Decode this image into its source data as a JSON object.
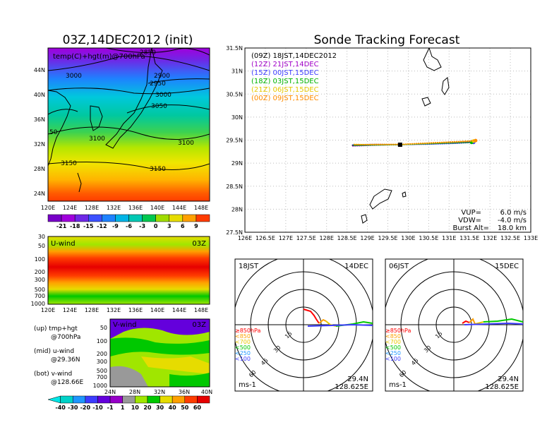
{
  "left_title": "03Z,14DEC2012 (init)",
  "right_title": "Sonde Tracking Forecast",
  "map": {
    "label": "temp(C)+hgt(m)@700hPa",
    "contours": [
      "2850",
      "2900",
      "2950",
      "3000",
      "3000",
      "3050",
      "3100",
      "3100",
      "3150",
      "3150",
      "50"
    ],
    "lat_ticks": [
      "44N",
      "40N",
      "36N",
      "32N",
      "28N",
      "24N"
    ],
    "lon_ticks": [
      "120E",
      "124E",
      "128E",
      "132E",
      "136E",
      "140E",
      "144E",
      "148E"
    ]
  },
  "temp_colorbar": [
    "-21",
    "-18",
    "-15",
    "-12",
    "-9",
    "-6",
    "-3",
    "0",
    "3",
    "6",
    "9"
  ],
  "uwind": {
    "label": "U-wind",
    "time": "03Z",
    "levels": [
      "30",
      "50",
      "100",
      "200",
      "300",
      "500",
      "700",
      "1000"
    ],
    "lon_ticks": [
      "120E",
      "124E",
      "128E",
      "132E",
      "136E",
      "140E",
      "144E",
      "148E"
    ]
  },
  "vwind": {
    "label": "V-wind",
    "time": "03Z",
    "levels": [
      "50",
      "100",
      "200",
      "300",
      "500",
      "700",
      "1000"
    ],
    "lat_ticks": [
      "24N",
      "28N",
      "32N",
      "36N",
      "40N"
    ]
  },
  "wind_colorbar": [
    "-40",
    "-30",
    "-20",
    "-10",
    "-1",
    "1",
    "10",
    "20",
    "30",
    "40",
    "50",
    "60"
  ],
  "notes": [
    {
      "a": "(up) tmp+hgt",
      "b": "@700hPa"
    },
    {
      "a": "(mid) u-wind",
      "b": "@29.36N"
    },
    {
      "a": "(bot) v-wind",
      "b": "@128.66E"
    }
  ],
  "track": {
    "legend": [
      {
        "label": "(09Z)  18JST,14DEC2012",
        "color": "#000000"
      },
      {
        "label": "(12Z)  21JST,14DEC",
        "color": "#a000c8"
      },
      {
        "label": "(15Z)  00JST,15DEC",
        "color": "#3c3cff"
      },
      {
        "label": "(18Z)  03JST,15DEC",
        "color": "#00b400"
      },
      {
        "label": "(21Z)  06JST,15DEC",
        "color": "#e6c800"
      },
      {
        "label": "(00Z)  09JST,15DEC",
        "color": "#ff8c00"
      }
    ],
    "lat_ticks": [
      "31.5N",
      "31N",
      "30.5N",
      "30N",
      "29.5N",
      "29N",
      "28.5N",
      "28N",
      "27.5N"
    ],
    "lon_ticks": [
      "126E",
      "126.5E",
      "127E",
      "127.5E",
      "128E",
      "128.5E",
      "129E",
      "129.5E",
      "130E",
      "130.5E",
      "131E",
      "131.5E",
      "132E",
      "132.5E",
      "133E"
    ],
    "params": [
      {
        "k": "VUP=",
        "v": "6.0  m/s"
      },
      {
        "k": "VDW=",
        "v": "-4.0  m/s"
      },
      {
        "k": "Burst Alt=",
        "v": "18.0  km"
      }
    ]
  },
  "chart_data": {
    "type": "line",
    "title": "Sonde Tracking Forecast",
    "xlabel": "",
    "ylabel": "",
    "xlim": [
      126,
      133
    ],
    "ylim": [
      27.5,
      31.5
    ],
    "launch": {
      "lon": 129.8,
      "lat": 29.4
    },
    "series": [
      {
        "name": "(09Z) 18JST,14DEC2012",
        "color": "#000000",
        "x": [
          128.62,
          129.2,
          129.8,
          130.5,
          131.2,
          131.55
        ],
        "y": [
          29.39,
          29.4,
          29.4,
          29.42,
          29.44,
          29.46
        ]
      },
      {
        "name": "(12Z) 21JST,14DEC",
        "color": "#a000c8",
        "x": [
          128.63,
          129.2,
          129.8,
          130.5,
          131.2,
          131.6
        ],
        "y": [
          29.37,
          29.39,
          29.4,
          29.43,
          29.45,
          29.47
        ]
      },
      {
        "name": "(15Z) 00JST,15DEC",
        "color": "#3c3cff",
        "x": [
          128.64,
          129.2,
          129.8,
          130.5,
          131.2,
          131.6
        ],
        "y": [
          29.4,
          29.41,
          29.4,
          29.41,
          29.43,
          29.45
        ]
      },
      {
        "name": "(18Z) 03JST,15DEC",
        "color": "#00b400",
        "x": [
          128.65,
          129.2,
          129.8,
          130.5,
          131.2,
          131.55
        ],
        "y": [
          29.38,
          29.39,
          29.4,
          29.42,
          29.44,
          29.45
        ]
      },
      {
        "name": "(21Z) 06JST,15DEC",
        "color": "#e6c800",
        "x": [
          128.66,
          129.2,
          129.8,
          130.5,
          131.2,
          131.6
        ],
        "y": [
          29.41,
          29.4,
          29.4,
          29.43,
          29.46,
          29.48
        ]
      },
      {
        "name": "(00Z) 09JST,15DEC",
        "color": "#ff8c00",
        "x": [
          128.68,
          129.2,
          129.8,
          130.5,
          131.2,
          131.65
        ],
        "y": [
          29.4,
          29.41,
          29.41,
          29.44,
          29.47,
          29.49
        ]
      }
    ]
  },
  "hodo_left": {
    "time": "18JST",
    "date": "14DEC",
    "rings": [
      "15",
      "30",
      "45",
      "60"
    ],
    "legend": [
      "≥850hPa",
      "<850",
      "<700",
      "<500",
      "<250",
      "<100"
    ],
    "unit": "ms-1",
    "lat": "29.4N",
    "lon": "128.625E"
  },
  "hodo_right": {
    "time": "06JST",
    "date": "15DEC",
    "rings": [
      "15",
      "30",
      "45",
      "60"
    ],
    "legend": [
      "≥850hPa",
      "<850",
      "<700",
      "<500",
      "<250",
      "<100"
    ],
    "unit": "ms-1",
    "lat": "29.4N",
    "lon": "128.625E"
  },
  "colors": {
    "temp_scale": [
      "#7800c8",
      "#a000dc",
      "#6e28e6",
      "#3c50ff",
      "#1e82ff",
      "#00b4e6",
      "#00c8b4",
      "#00c850",
      "#a0dc00",
      "#e6dc00",
      "#ffa000",
      "#ff3c00"
    ],
    "wind_scale": [
      "#00d2c8",
      "#1e96ff",
      "#3c3cff",
      "#6400dc",
      "#9600c8",
      "#999999",
      "#a0e600",
      "#00c800",
      "#e6dc00",
      "#ffa000",
      "#ff3c00",
      "#e60000"
    ],
    "hodo_levels": [
      "#ff0000",
      "#ffa000",
      "#e6c800",
      "#00c800",
      "#1e96ff",
      "#3c3cff"
    ]
  }
}
